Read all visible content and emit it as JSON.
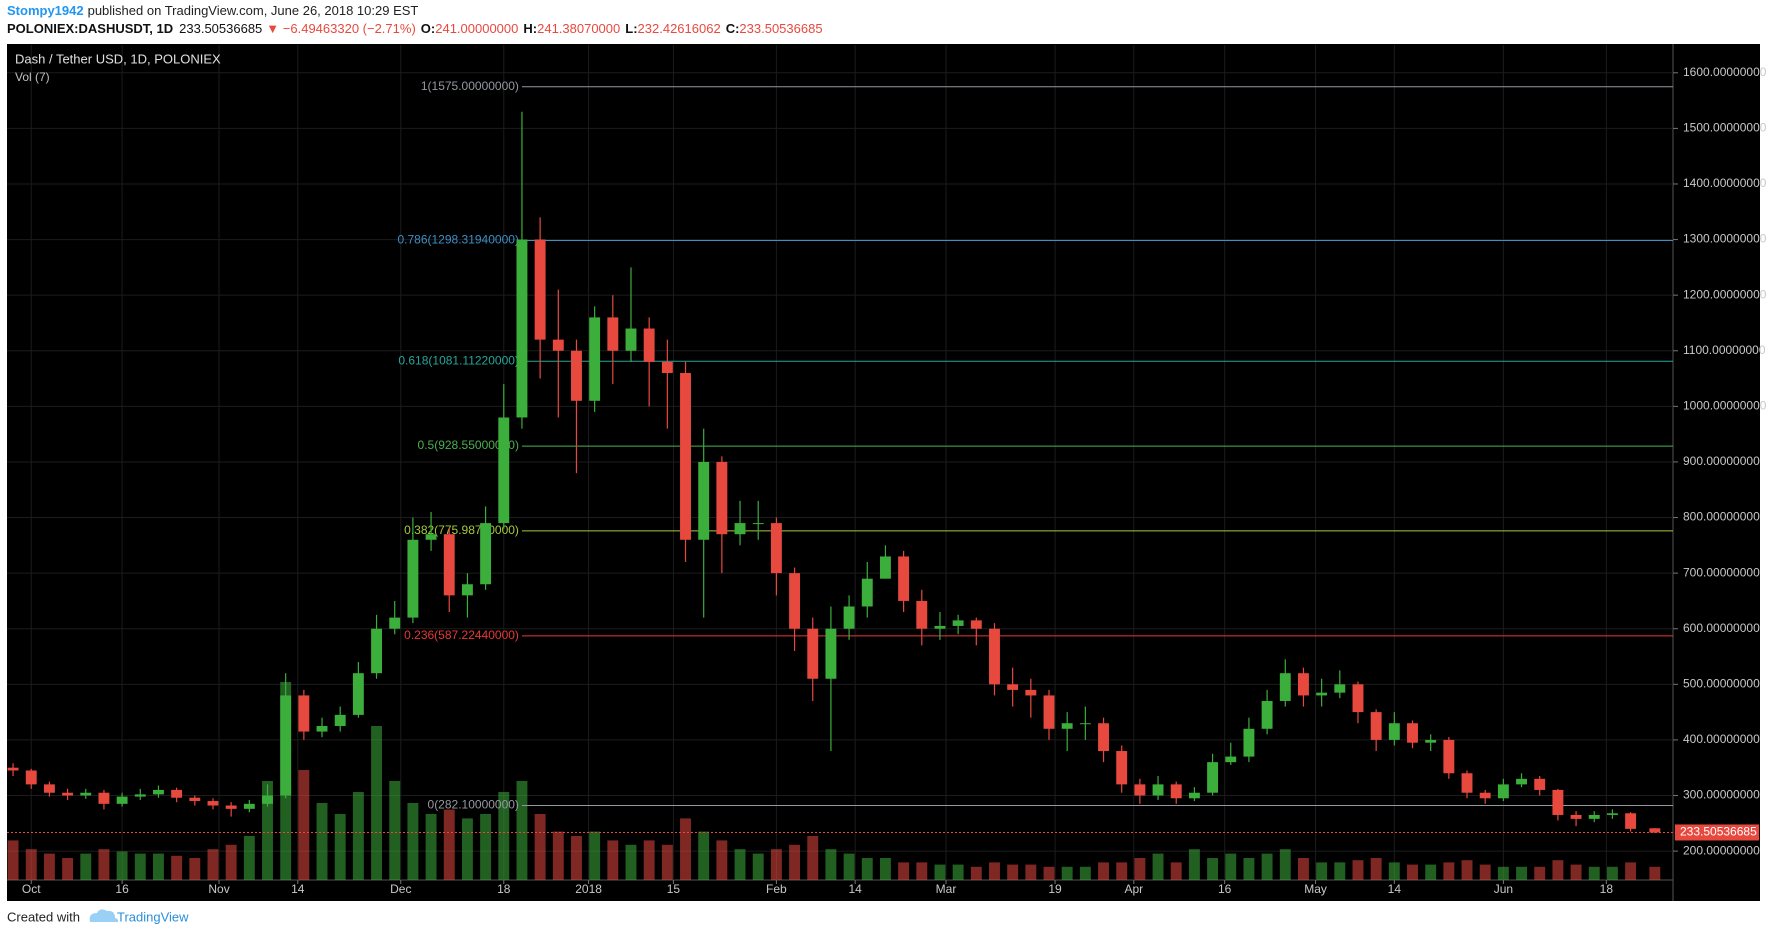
{
  "header": {
    "user": "Stompy1942",
    "published": "published on TradingView.com, June 26, 2018 10:29 EST",
    "symbol": "POLONIEX:DASHUSDT, 1D",
    "price": "233.50536685",
    "change": "▼ −6.49463320 (−2.71%)",
    "ohlc": [
      {
        "label": "O:",
        "value": "241.00000000"
      },
      {
        "label": "H:",
        "value": "241.38070000"
      },
      {
        "label": "L:",
        "value": "232.42616062"
      },
      {
        "label": "C:",
        "value": "233.50536685"
      }
    ]
  },
  "chart_data": {
    "type": "candlestick",
    "title": "Dash / Tether USD, 1D, POLONIEX",
    "volume_label": "Vol (7)",
    "up_color": "#3cae3c",
    "down_color": "#e8493f",
    "grid": true,
    "xlim": [
      "2017-09-27",
      "2018-06-29"
    ],
    "xticks": [
      {
        "value": "2017-10-01",
        "label": "Oct"
      },
      {
        "value": "2017-10-16",
        "label": "16"
      },
      {
        "value": "2017-11-01",
        "label": "Nov"
      },
      {
        "value": "2017-11-14",
        "label": "14"
      },
      {
        "value": "2017-12-01",
        "label": "Dec"
      },
      {
        "value": "2017-12-18",
        "label": "18"
      },
      {
        "value": "2018-01-01",
        "label": "2018"
      },
      {
        "value": "2018-01-15",
        "label": "15"
      },
      {
        "value": "2018-02-01",
        "label": "Feb"
      },
      {
        "value": "2018-02-14",
        "label": "14"
      },
      {
        "value": "2018-03-01",
        "label": "Mar"
      },
      {
        "value": "2018-03-19",
        "label": "19"
      },
      {
        "value": "2018-04-01",
        "label": "Apr"
      },
      {
        "value": "2018-04-16",
        "label": "16"
      },
      {
        "value": "2018-05-01",
        "label": "May"
      },
      {
        "value": "2018-05-14",
        "label": "14"
      },
      {
        "value": "2018-06-01",
        "label": "Jun"
      },
      {
        "value": "2018-06-18",
        "label": "18"
      }
    ],
    "ylim": [
      148,
      1650
    ],
    "yticks": [
      {
        "value": 200,
        "label": "200.00000000"
      },
      {
        "value": 300,
        "label": "300.00000000"
      },
      {
        "value": 400,
        "label": "400.00000000"
      },
      {
        "value": 500,
        "label": "500.00000000"
      },
      {
        "value": 600,
        "label": "600.00000000"
      },
      {
        "value": 700,
        "label": "700.00000000"
      },
      {
        "value": 800,
        "label": "800.00000000"
      },
      {
        "value": 900,
        "label": "900.00000000"
      },
      {
        "value": 1000,
        "label": "1000.00000000"
      },
      {
        "value": 1100,
        "label": "1100.00000000"
      },
      {
        "value": 1200,
        "label": "1200.00000000"
      },
      {
        "value": 1300,
        "label": "1300.00000000"
      },
      {
        "value": 1400,
        "label": "1400.00000000"
      },
      {
        "value": 1500,
        "label": "1500.00000000"
      },
      {
        "value": 1600,
        "label": "1600.00000000"
      }
    ],
    "fib": [
      {
        "label": "1(1575.00000000)",
        "value": 1575,
        "color": "#9598a1"
      },
      {
        "label": "0.786(1298.31940000)",
        "value": 1298.3194,
        "color": "#3d8fc6"
      },
      {
        "label": "0.618(1081.11220000)",
        "value": 1081.1122,
        "color": "#26a69a"
      },
      {
        "label": "0.5(928.55000000)",
        "value": 928.55,
        "color": "#4caf50"
      },
      {
        "label": "0.382(775.98780000)",
        "value": 775.9878,
        "color": "#a5c93a"
      },
      {
        "label": "0.236(587.22440000)",
        "value": 587.2244,
        "color": "#e53935"
      },
      {
        "label": "0(282.10000000)",
        "value": 282.1,
        "color": "#9598a1"
      }
    ],
    "x": [
      "2017-09-28",
      "2017-10-01",
      "2017-10-04",
      "2017-10-07",
      "2017-10-10",
      "2017-10-13",
      "2017-10-16",
      "2017-10-19",
      "2017-10-22",
      "2017-10-25",
      "2017-10-28",
      "2017-10-31",
      "2017-11-03",
      "2017-11-06",
      "2017-11-09",
      "2017-11-12",
      "2017-11-15",
      "2017-11-18",
      "2017-11-21",
      "2017-11-24",
      "2017-11-27",
      "2017-11-30",
      "2017-12-03",
      "2017-12-06",
      "2017-12-09",
      "2017-12-12",
      "2017-12-15",
      "2017-12-18",
      "2017-12-21",
      "2017-12-24",
      "2017-12-27",
      "2017-12-30",
      "2018-01-02",
      "2018-01-05",
      "2018-01-08",
      "2018-01-11",
      "2018-01-14",
      "2018-01-17",
      "2018-01-20",
      "2018-01-23",
      "2018-01-26",
      "2018-01-29",
      "2018-02-01",
      "2018-02-04",
      "2018-02-07",
      "2018-02-10",
      "2018-02-13",
      "2018-02-16",
      "2018-02-19",
      "2018-02-22",
      "2018-02-25",
      "2018-02-28",
      "2018-03-03",
      "2018-03-06",
      "2018-03-09",
      "2018-03-12",
      "2018-03-15",
      "2018-03-18",
      "2018-03-21",
      "2018-03-24",
      "2018-03-27",
      "2018-03-30",
      "2018-04-02",
      "2018-04-05",
      "2018-04-08",
      "2018-04-11",
      "2018-04-14",
      "2018-04-17",
      "2018-04-20",
      "2018-04-23",
      "2018-04-26",
      "2018-04-29",
      "2018-05-02",
      "2018-05-05",
      "2018-05-08",
      "2018-05-11",
      "2018-05-14",
      "2018-05-17",
      "2018-05-20",
      "2018-05-23",
      "2018-05-26",
      "2018-05-29",
      "2018-06-01",
      "2018-06-04",
      "2018-06-07",
      "2018-06-10",
      "2018-06-13",
      "2018-06-16",
      "2018-06-19",
      "2018-06-22",
      "2018-06-26"
    ],
    "open": [
      350,
      345,
      320,
      305,
      300,
      305,
      285,
      298,
      302,
      310,
      296,
      290,
      282,
      276,
      285,
      300,
      480,
      415,
      425,
      445,
      520,
      600,
      620,
      760,
      770,
      660,
      680,
      790,
      980,
      1300,
      1120,
      1100,
      1010,
      1160,
      1100,
      1140,
      1080,
      1060,
      760,
      900,
      770,
      790,
      790,
      700,
      600,
      510,
      600,
      640,
      690,
      730,
      650,
      600,
      605,
      615,
      600,
      500,
      490,
      480,
      420,
      430,
      430,
      380,
      320,
      300,
      320,
      295,
      305,
      360,
      370,
      420,
      470,
      520,
      480,
      485,
      500,
      450,
      400,
      430,
      395,
      400,
      340,
      305,
      295,
      320,
      330,
      310,
      265,
      258,
      265,
      268,
      241
    ],
    "high": [
      358,
      348,
      325,
      312,
      312,
      310,
      305,
      312,
      318,
      314,
      300,
      295,
      288,
      292,
      320,
      520,
      490,
      440,
      460,
      540,
      625,
      650,
      800,
      810,
      780,
      700,
      820,
      1040,
      1530,
      1340,
      1210,
      1120,
      1180,
      1200,
      1250,
      1160,
      1120,
      1080,
      960,
      910,
      830,
      830,
      800,
      710,
      620,
      640,
      660,
      720,
      750,
      740,
      670,
      630,
      625,
      620,
      610,
      530,
      510,
      490,
      450,
      460,
      440,
      390,
      330,
      335,
      325,
      315,
      375,
      395,
      440,
      490,
      545,
      530,
      510,
      525,
      505,
      455,
      450,
      435,
      410,
      405,
      345,
      310,
      330,
      340,
      335,
      312,
      272,
      272,
      275,
      270,
      241.3807
    ],
    "low": [
      335,
      312,
      298,
      292,
      294,
      275,
      280,
      292,
      296,
      288,
      282,
      275,
      262,
      270,
      280,
      295,
      400,
      405,
      415,
      440,
      510,
      590,
      610,
      740,
      630,
      620,
      670,
      780,
      960,
      1050,
      980,
      880,
      990,
      1040,
      1080,
      1000,
      960,
      720,
      620,
      700,
      750,
      760,
      660,
      560,
      470,
      380,
      580,
      620,
      690,
      630,
      570,
      580,
      590,
      570,
      480,
      460,
      440,
      400,
      380,
      400,
      360,
      305,
      285,
      292,
      285,
      290,
      300,
      355,
      360,
      410,
      460,
      460,
      460,
      475,
      430,
      380,
      390,
      385,
      380,
      330,
      295,
      285,
      290,
      315,
      300,
      255,
      245,
      252,
      258,
      235,
      232.42616062
    ],
    "close": [
      345,
      320,
      305,
      300,
      305,
      285,
      298,
      302,
      310,
      296,
      290,
      282,
      276,
      285,
      300,
      480,
      415,
      425,
      445,
      520,
      600,
      620,
      760,
      770,
      660,
      680,
      790,
      980,
      1300,
      1120,
      1100,
      1010,
      1160,
      1100,
      1140,
      1080,
      1060,
      760,
      900,
      770,
      790,
      790,
      700,
      600,
      510,
      600,
      640,
      690,
      730,
      650,
      600,
      605,
      615,
      600,
      500,
      490,
      480,
      420,
      430,
      430,
      380,
      320,
      300,
      320,
      295,
      305,
      360,
      370,
      420,
      470,
      520,
      480,
      485,
      500,
      450,
      400,
      430,
      395,
      400,
      340,
      305,
      295,
      320,
      330,
      310,
      265,
      258,
      265,
      268,
      240,
      233.50536685
    ],
    "volume": [
      18,
      14,
      12,
      10,
      12,
      14,
      13,
      12,
      12,
      11,
      10,
      14,
      16,
      20,
      45,
      90,
      50,
      35,
      30,
      40,
      70,
      45,
      35,
      30,
      32,
      28,
      30,
      40,
      45,
      30,
      22,
      20,
      22,
      18,
      16,
      18,
      16,
      28,
      22,
      18,
      14,
      12,
      14,
      16,
      20,
      14,
      12,
      10,
      10,
      8,
      8,
      7,
      7,
      6,
      8,
      7,
      7,
      6,
      6,
      6,
      8,
      8,
      10,
      12,
      8,
      14,
      10,
      12,
      10,
      12,
      14,
      10,
      8,
      8,
      9,
      10,
      8,
      7,
      7,
      8,
      9,
      7,
      6,
      6,
      6,
      9,
      7,
      6,
      6,
      8,
      6
    ]
  },
  "footer": {
    "created_with": "Created with",
    "brand": "TradingView"
  }
}
